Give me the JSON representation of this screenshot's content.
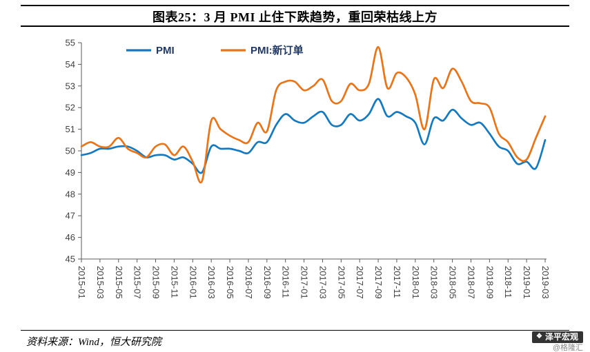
{
  "title": "图表25：3 月 PMI 止住下跌趋势，重回荣枯线上方",
  "footer": {
    "source": "资料来源：Wind，恒大研究院"
  },
  "watermark": {
    "brand": "泽平宏观",
    "handle": "@格隆汇"
  },
  "chart_data": {
    "type": "line",
    "title": "图表25：3 月 PMI 止住下跌趋势，重回荣枯线上方",
    "grid": false,
    "legend_position": "top-inside",
    "ylim": [
      45,
      55
    ],
    "y_tick_step": 1,
    "x_tick_every": 2,
    "x": [
      "2015-01",
      "2015-02",
      "2015-03",
      "2015-04",
      "2015-05",
      "2015-06",
      "2015-07",
      "2015-08",
      "2015-09",
      "2015-10",
      "2015-11",
      "2015-12",
      "2016-01",
      "2016-02",
      "2016-03",
      "2016-04",
      "2016-05",
      "2016-06",
      "2016-07",
      "2016-08",
      "2016-09",
      "2016-10",
      "2016-11",
      "2016-12",
      "2017-01",
      "2017-02",
      "2017-03",
      "2017-04",
      "2017-05",
      "2017-06",
      "2017-07",
      "2017-08",
      "2017-09",
      "2017-10",
      "2017-11",
      "2017-12",
      "2018-01",
      "2018-02",
      "2018-03",
      "2018-04",
      "2018-05",
      "2018-06",
      "2018-07",
      "2018-08",
      "2018-09",
      "2018-10",
      "2018-11",
      "2018-12",
      "2019-01",
      "2019-02",
      "2019-03"
    ],
    "series": [
      {
        "name": "PMI",
        "color": "#1579c0",
        "values": [
          49.8,
          49.9,
          50.1,
          50.1,
          50.2,
          50.2,
          50.0,
          49.7,
          49.8,
          49.8,
          49.6,
          49.7,
          49.4,
          49.0,
          50.2,
          50.1,
          50.1,
          50.0,
          49.9,
          50.4,
          50.4,
          51.2,
          51.7,
          51.4,
          51.3,
          51.6,
          51.8,
          51.2,
          51.2,
          51.7,
          51.4,
          51.7,
          52.4,
          51.6,
          51.8,
          51.6,
          51.3,
          50.3,
          51.5,
          51.4,
          51.9,
          51.5,
          51.2,
          51.3,
          50.8,
          50.2,
          50.0,
          49.4,
          49.5,
          49.2,
          50.5
        ]
      },
      {
        "name": "PMI:新订单",
        "color": "#e8751a",
        "values": [
          50.2,
          50.4,
          50.2,
          50.2,
          50.6,
          50.1,
          49.9,
          49.7,
          50.2,
          50.3,
          49.8,
          50.2,
          49.5,
          48.6,
          51.4,
          51.0,
          50.7,
          50.5,
          50.4,
          51.3,
          50.9,
          52.8,
          53.2,
          53.2,
          52.8,
          53.0,
          53.3,
          52.3,
          52.3,
          53.1,
          52.8,
          53.1,
          54.8,
          52.9,
          53.6,
          53.4,
          52.6,
          51.0,
          53.3,
          52.9,
          53.8,
          53.2,
          52.3,
          52.2,
          52.0,
          50.8,
          50.4,
          49.7,
          49.6,
          50.6,
          51.6
        ]
      }
    ]
  }
}
